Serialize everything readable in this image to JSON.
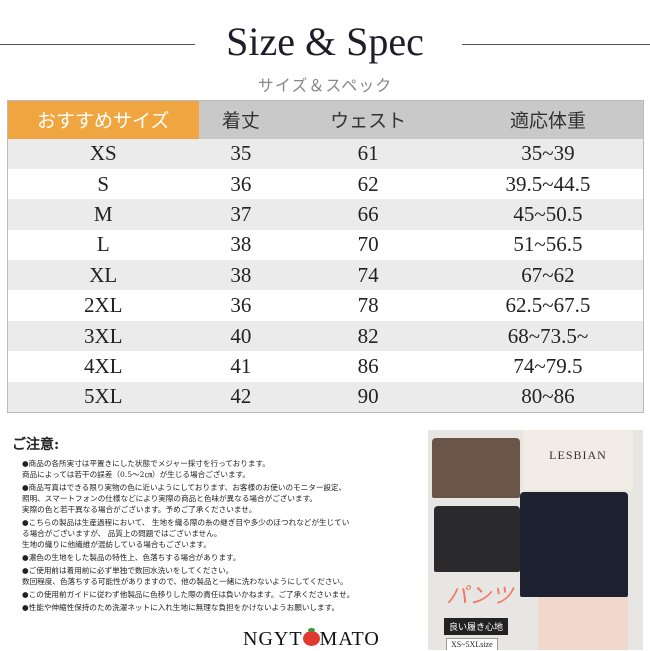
{
  "header": {
    "title": "Size & Spec",
    "subtitle": "サイズ＆スペック"
  },
  "table": {
    "columns": [
      "おすすめサイズ",
      "着丈",
      "ウェスト",
      "適応体重"
    ],
    "rows": [
      [
        "XS",
        "35",
        "61",
        "35~39"
      ],
      [
        "S",
        "36",
        "62",
        "39.5~44.5"
      ],
      [
        "M",
        "37",
        "66",
        "45~50.5"
      ],
      [
        "L",
        "38",
        "70",
        "51~56.5"
      ],
      [
        "XL",
        "38",
        "74",
        "67~62"
      ],
      [
        "2XL",
        "36",
        "78",
        "62.5~67.5"
      ],
      [
        "3XL",
        "40",
        "82",
        "68~73.5~"
      ],
      [
        "4XL",
        "41",
        "86",
        "74~79.5"
      ],
      [
        "5XL",
        "42",
        "90",
        "80~86"
      ]
    ],
    "colors": {
      "header_accent": "#f0a640",
      "header": "#c9c9c9",
      "row_alt": "#ebebeb"
    }
  },
  "notes": {
    "title": "ご注意:",
    "items": [
      "●商品の各所実寸は平置きにした状態でメジャー採寸を行っております。\n商品によっては若干の誤差（0.5〜2㎝）が生じる場合ございます。",
      "●商品写真はできる限り実物の色に近いようにしております、お客様のお使いのモニター設定、\n照明、スマートフォンの仕様などにより実際の商品と色味が異なる場合がございます。\n実際の色と若干異なる場合がございます。予めご了承くださいませ。",
      "●こちらの製品は生産過程において、 生地を織る際の糸の継ぎ目や多少のほつれなどが生じてい\nる場合がございますが、 品質上の問題ではございません。\n生地の織りに他繊維が混紡している場合もございます。",
      "●濃色の生地をした製品の特性上、色落ちする場合があります。",
      "●ご使用前は着用前に必ず単独で数回水洗いをしてください。\n数回程度、色落ちする可能性がありますので、他の製品と一緒に洗わないようにしてください。",
      "●この使用前ガイドに従わず他製品に色移りした際の責任は負いかねます。ご了承くださいませ。",
      "●性能や伸縮性保持のため洗濯ネットに入れ生地に無理な負担をかけないようお願いします。"
    ]
  },
  "brand": {
    "logo_left": "NGYT",
    "logo_right": "MATO"
  },
  "photo": {
    "shirt_text": "LESBIAN",
    "pants_text": "パンツ",
    "comfort_label": "良い履き心地",
    "size_range": "XS~5XLsize"
  }
}
